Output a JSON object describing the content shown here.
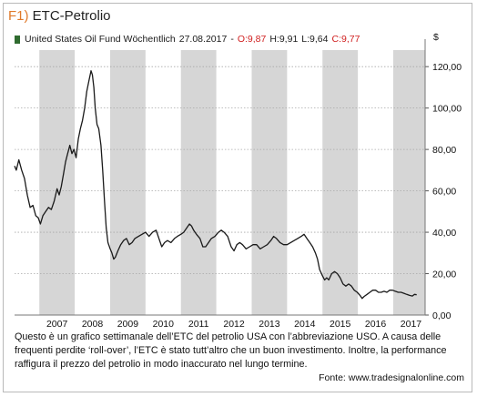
{
  "figure": {
    "label": "F1)",
    "title": "ETC-Petrolio"
  },
  "legend": {
    "series_name": "United States Oil Fund Wöchentlich",
    "date": "27.08.2017",
    "sep": "-",
    "open": "O:9,87",
    "high": "H:9,91",
    "low": "L:9,64",
    "close": "C:9,77",
    "series_color": "#2f6b2f",
    "accent_color": "#d02020"
  },
  "caption": "Questo è un grafico settimanale dell’ETC del petrolio USA con l’abbreviazione USO. A causa delle frequenti perdite ‘roll-over’, l’ETC è stato tutt’altro che un buon investimento. Inoltre, la performance raffigura il prezzo del petrolio in modo inaccurato nel lungo termine.",
  "source": "Fonte: www.tradesignalonline.com",
  "chart_data": {
    "type": "line",
    "yunit": "$",
    "ylim": [
      0,
      128
    ],
    "xlim": [
      2006.3,
      2017.9
    ],
    "y_ticks": [
      "0,00",
      "20,00",
      "40,00",
      "60,00",
      "80,00",
      "100,00",
      "120,00"
    ],
    "y_tick_values": [
      0,
      20,
      40,
      60,
      80,
      100,
      120
    ],
    "x_ticks": [
      "2007",
      "2008",
      "2009",
      "2010",
      "2011",
      "2012",
      "2013",
      "2014",
      "2015",
      "2016",
      "2017"
    ],
    "alternating_year_shading": true,
    "shaded_years": [
      2007,
      2009,
      2011,
      2013,
      2015,
      2017
    ],
    "series": [
      {
        "name": "United States Oil Fund Wöchentlich",
        "points": [
          [
            2006.3,
            72
          ],
          [
            2006.35,
            70
          ],
          [
            2006.42,
            75
          ],
          [
            2006.5,
            70
          ],
          [
            2006.58,
            66
          ],
          [
            2006.66,
            58
          ],
          [
            2006.74,
            52
          ],
          [
            2006.82,
            53
          ],
          [
            2006.9,
            48
          ],
          [
            2006.97,
            47
          ],
          [
            2007.03,
            44
          ],
          [
            2007.1,
            48
          ],
          [
            2007.18,
            50
          ],
          [
            2007.26,
            52
          ],
          [
            2007.34,
            51
          ],
          [
            2007.42,
            55
          ],
          [
            2007.5,
            61
          ],
          [
            2007.56,
            58
          ],
          [
            2007.62,
            62
          ],
          [
            2007.68,
            68
          ],
          [
            2007.74,
            74
          ],
          [
            2007.8,
            78
          ],
          [
            2007.86,
            82
          ],
          [
            2007.92,
            78
          ],
          [
            2007.98,
            80
          ],
          [
            2008.04,
            76
          ],
          [
            2008.1,
            85
          ],
          [
            2008.16,
            90
          ],
          [
            2008.22,
            94
          ],
          [
            2008.28,
            100
          ],
          [
            2008.34,
            108
          ],
          [
            2008.4,
            113
          ],
          [
            2008.46,
            118
          ],
          [
            2008.5,
            116
          ],
          [
            2008.54,
            110
          ],
          [
            2008.58,
            100
          ],
          [
            2008.63,
            92
          ],
          [
            2008.68,
            90
          ],
          [
            2008.74,
            82
          ],
          [
            2008.79,
            70
          ],
          [
            2008.84,
            55
          ],
          [
            2008.89,
            42
          ],
          [
            2008.94,
            35
          ],
          [
            2009.0,
            32
          ],
          [
            2009.05,
            30
          ],
          [
            2009.1,
            27
          ],
          [
            2009.15,
            28
          ],
          [
            2009.22,
            31
          ],
          [
            2009.3,
            34
          ],
          [
            2009.38,
            36
          ],
          [
            2009.46,
            37
          ],
          [
            2009.54,
            34
          ],
          [
            2009.62,
            35
          ],
          [
            2009.7,
            37
          ],
          [
            2009.8,
            38
          ],
          [
            2009.9,
            39
          ],
          [
            2010.0,
            40
          ],
          [
            2010.1,
            38
          ],
          [
            2010.2,
            40
          ],
          [
            2010.3,
            41
          ],
          [
            2010.38,
            37
          ],
          [
            2010.46,
            33
          ],
          [
            2010.54,
            35
          ],
          [
            2010.62,
            36
          ],
          [
            2010.72,
            35
          ],
          [
            2010.82,
            37
          ],
          [
            2010.9,
            38
          ],
          [
            2011.0,
            39
          ],
          [
            2011.08,
            40
          ],
          [
            2011.16,
            42
          ],
          [
            2011.24,
            44
          ],
          [
            2011.3,
            43
          ],
          [
            2011.36,
            41
          ],
          [
            2011.44,
            39
          ],
          [
            2011.54,
            37
          ],
          [
            2011.62,
            33
          ],
          [
            2011.7,
            33
          ],
          [
            2011.78,
            35
          ],
          [
            2011.86,
            37
          ],
          [
            2011.96,
            38
          ],
          [
            2012.06,
            40
          ],
          [
            2012.14,
            41
          ],
          [
            2012.22,
            40
          ],
          [
            2012.32,
            38
          ],
          [
            2012.42,
            33
          ],
          [
            2012.5,
            31
          ],
          [
            2012.58,
            34
          ],
          [
            2012.66,
            35
          ],
          [
            2012.74,
            34
          ],
          [
            2012.84,
            32
          ],
          [
            2012.94,
            33
          ],
          [
            2013.04,
            34
          ],
          [
            2013.14,
            34
          ],
          [
            2013.24,
            32
          ],
          [
            2013.34,
            33
          ],
          [
            2013.44,
            34
          ],
          [
            2013.54,
            36
          ],
          [
            2013.62,
            38
          ],
          [
            2013.7,
            37
          ],
          [
            2013.8,
            35
          ],
          [
            2013.9,
            34
          ],
          [
            2014.0,
            34
          ],
          [
            2014.1,
            35
          ],
          [
            2014.2,
            36
          ],
          [
            2014.3,
            37
          ],
          [
            2014.4,
            38
          ],
          [
            2014.48,
            39
          ],
          [
            2014.56,
            37
          ],
          [
            2014.64,
            35
          ],
          [
            2014.72,
            33
          ],
          [
            2014.8,
            30
          ],
          [
            2014.86,
            27
          ],
          [
            2014.92,
            22
          ],
          [
            2015.0,
            19
          ],
          [
            2015.06,
            17
          ],
          [
            2015.12,
            18
          ],
          [
            2015.18,
            17
          ],
          [
            2015.26,
            20
          ],
          [
            2015.34,
            21
          ],
          [
            2015.42,
            20
          ],
          [
            2015.5,
            18
          ],
          [
            2015.58,
            15
          ],
          [
            2015.66,
            14
          ],
          [
            2015.74,
            15
          ],
          [
            2015.82,
            14
          ],
          [
            2015.9,
            12
          ],
          [
            2015.98,
            11
          ],
          [
            2016.06,
            9.5
          ],
          [
            2016.12,
            8
          ],
          [
            2016.18,
            9
          ],
          [
            2016.26,
            10
          ],
          [
            2016.34,
            11
          ],
          [
            2016.42,
            12
          ],
          [
            2016.5,
            12
          ],
          [
            2016.58,
            11
          ],
          [
            2016.66,
            11
          ],
          [
            2016.74,
            11.5
          ],
          [
            2016.82,
            11
          ],
          [
            2016.9,
            12
          ],
          [
            2016.98,
            12
          ],
          [
            2017.06,
            11.5
          ],
          [
            2017.14,
            11
          ],
          [
            2017.22,
            11
          ],
          [
            2017.3,
            10.5
          ],
          [
            2017.38,
            10
          ],
          [
            2017.46,
            9.5
          ],
          [
            2017.54,
            9.2
          ],
          [
            2017.6,
            10
          ],
          [
            2017.66,
            9.8
          ]
        ]
      }
    ]
  }
}
